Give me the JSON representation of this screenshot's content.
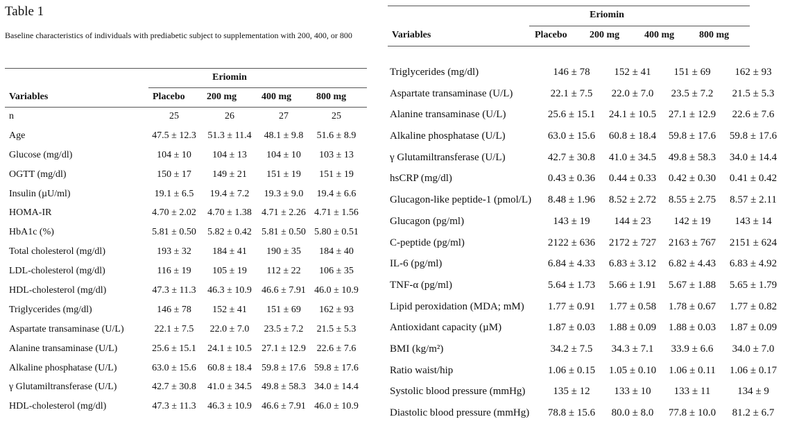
{
  "title": "Table 1",
  "caption": "Baseline characteristics of individuals with prediabetic subject to supplementation with 200, 400, or 800",
  "left_table": {
    "group_header": "Eriomin",
    "headers": [
      "Variables",
      "Placebo",
      "200 mg",
      "400 mg",
      "800 mg"
    ],
    "rows": [
      {
        "label": "n",
        "values": [
          "25",
          "26",
          "27",
          "25"
        ]
      },
      {
        "label": "Age",
        "values": [
          "47.5 ± 12.3",
          "51.3 ± 11.4",
          "48.1 ± 9.8",
          "51.6 ± 8.9"
        ]
      },
      {
        "label": "Glucose (mg/dl)",
        "values": [
          "104 ± 10",
          "104 ± 13",
          "104 ± 10",
          "103 ± 13"
        ]
      },
      {
        "label": "OGTT (mg/dl)",
        "values": [
          "150 ± 17",
          "149 ± 21",
          "151 ± 19",
          "151 ± 19"
        ]
      },
      {
        "label": "Insulin (µU/ml)",
        "values": [
          "19.1 ± 6.5",
          "19.4 ± 7.2",
          "19.3 ± 9.0",
          "19.4 ± 6.6"
        ]
      },
      {
        "label": "HOMA-IR",
        "values": [
          "4.70 ± 2.02",
          "4.70 ± 1.38",
          "4.71 ± 2.26",
          "4.71 ± 1.56"
        ]
      },
      {
        "label": "HbA1c (%)",
        "values": [
          "5.81 ± 0.50",
          "5.82 ± 0.42",
          "5.81 ± 0.50",
          "5.80 ± 0.51"
        ]
      },
      {
        "label": "Total cholesterol (mg/dl)",
        "values": [
          "193 ± 32",
          "184 ± 41",
          "190 ± 35",
          "184 ± 40"
        ]
      },
      {
        "label": "LDL-cholesterol (mg/dl)",
        "values": [
          "116 ± 19",
          "105 ± 19",
          "112 ± 22",
          "106 ± 35"
        ]
      },
      {
        "label": "HDL-cholesterol (mg/dl)",
        "values": [
          "47.3 ± 11.3",
          "46.3 ± 10.9",
          "46.6 ± 7.91",
          "46.0 ± 10.9"
        ]
      },
      {
        "label": "Triglycerides (mg/dl)",
        "values": [
          "146 ± 78",
          "152 ± 41",
          "151 ± 69",
          "162 ± 93"
        ]
      },
      {
        "label": "Aspartate transaminase (U/L)",
        "values": [
          "22.1 ± 7.5",
          "22.0 ± 7.0",
          "23.5 ± 7.2",
          "21.5 ± 5.3"
        ]
      },
      {
        "label": "Alanine transaminase (U/L)",
        "values": [
          "25.6 ± 15.1",
          "24.1 ± 10.5",
          "27.1 ± 12.9",
          "22.6 ± 7.6"
        ]
      },
      {
        "label": "Alkaline phosphatase (U/L)",
        "values": [
          "63.0 ± 15.6",
          "60.8 ± 18.4",
          "59.8 ± 17.6",
          "59.8 ± 17.6"
        ]
      },
      {
        "label": "γ Glutamiltransferase (U/L)",
        "values": [
          "42.7 ± 30.8",
          "41.0 ± 34.5",
          "49.8 ± 58.3",
          "34.0 ± 14.4"
        ]
      },
      {
        "label": "HDL-cholesterol (mg/dl)",
        "values": [
          "47.3 ± 11.3",
          "46.3 ± 10.9",
          "46.6 ± 7.91",
          "46.0 ± 10.9"
        ]
      }
    ]
  },
  "right_table": {
    "group_header": "Eriomin",
    "headers": [
      "Variables",
      "Placebo",
      "200 mg",
      "400 mg",
      "800 mg"
    ],
    "rows": [
      {
        "label": "Triglycerides (mg/dl)",
        "values": [
          "146 ± 78",
          "152 ± 41",
          "151 ± 69",
          "162 ± 93"
        ]
      },
      {
        "label": "Aspartate transaminase (U/L)",
        "values": [
          "22.1 ± 7.5",
          "22.0 ± 7.0",
          "23.5 ± 7.2",
          "21.5 ± 5.3"
        ]
      },
      {
        "label": "Alanine transaminase (U/L)",
        "values": [
          "25.6 ± 15.1",
          "24.1 ± 10.5",
          "27.1 ± 12.9",
          "22.6 ± 7.6"
        ]
      },
      {
        "label": "Alkaline phosphatase (U/L)",
        "values": [
          "63.0 ± 15.6",
          "60.8 ± 18.4",
          "59.8 ± 17.6",
          "59.8 ± 17.6"
        ]
      },
      {
        "label": "γ Glutamiltransferase (U/L)",
        "values": [
          "42.7 ± 30.8",
          "41.0 ± 34.5",
          "49.8 ± 58.3",
          "34.0 ± 14.4"
        ]
      },
      {
        "label": "hsCRP (mg/dl)",
        "values": [
          "0.43 ± 0.36",
          "0.44 ± 0.33",
          "0.42 ± 0.30",
          "0.41 ± 0.42"
        ]
      },
      {
        "label": "Glucagon-like peptide-1 (pmol/L)",
        "values": [
          "8.48 ± 1.96",
          "8.52 ± 2.72",
          "8.55 ± 2.75",
          "8.57 ± 2.11"
        ]
      },
      {
        "label": "Glucagon (pg/ml)",
        "values": [
          "143 ± 19",
          "144 ± 23",
          "142 ± 19",
          "143 ± 14"
        ]
      },
      {
        "label": "C-peptide (pg/ml)",
        "values": [
          "2122 ± 636",
          "2172 ± 727",
          "2163 ± 767",
          "2151 ± 624"
        ]
      },
      {
        "label": "IL-6 (pg/ml)",
        "values": [
          "6.84 ± 4.33",
          "6.83 ± 3.12",
          "6.82 ± 4.43",
          "6.83 ± 4.92"
        ]
      },
      {
        "label": "TNF-α (pg/ml)",
        "values": [
          "5.64 ± 1.73",
          "5.66 ± 1.91",
          "5.67 ± 1.88",
          "5.65 ± 1.79"
        ]
      },
      {
        "label": "Lipid peroxidation (MDA; mM)",
        "values": [
          "1.77 ± 0.91",
          "1.77 ± 0.58",
          "1.78 ± 0.67",
          "1.77 ± 0.82"
        ]
      },
      {
        "label": "Antioxidant capacity (µM)",
        "values": [
          "1.87 ± 0.03",
          "1.88 ± 0.09",
          "1.88 ± 0.03",
          "1.87 ± 0.09"
        ]
      },
      {
        "label": "BMI (kg/m²)",
        "values": [
          "34.2 ± 7.5",
          "34.3 ± 7.1",
          "33.9 ± 6.6",
          "34.0 ± 7.0"
        ]
      },
      {
        "label": "Ratio waist/hip",
        "values": [
          "1.06 ± 0.15",
          "1.05 ± 0.10",
          "1.06 ± 0.11",
          "1.06 ± 0.17"
        ]
      },
      {
        "label": "Systolic blood pressure (mmHg)",
        "values": [
          "135 ± 12",
          "133 ± 10",
          "133 ± 11",
          "134 ± 9"
        ]
      },
      {
        "label": "Diastolic blood pressure (mmHg)",
        "values": [
          "78.8 ± 15.6",
          "80.0 ± 8.0",
          "77.8 ± 10.0",
          "81.2 ± 6.7"
        ]
      }
    ]
  }
}
